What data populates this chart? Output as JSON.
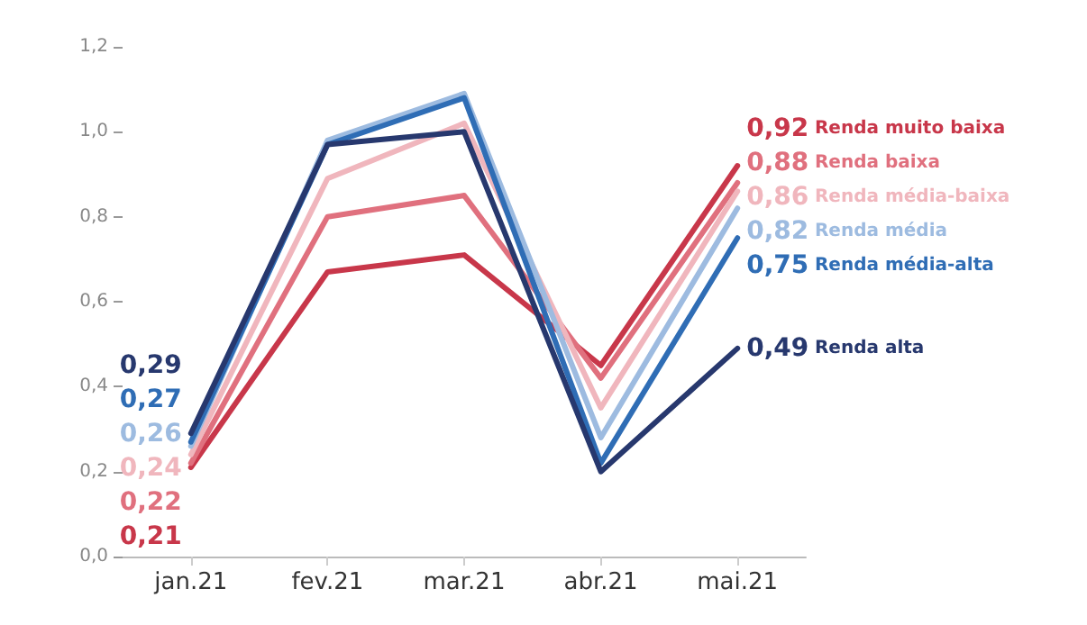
{
  "chart_data": {
    "type": "line",
    "categories": [
      "jan.21",
      "fev.21",
      "mar.21",
      "abr.21",
      "mai.21"
    ],
    "ylim": [
      0,
      1.2
    ],
    "yticks": [
      {
        "value": 0,
        "label": "0,0"
      },
      {
        "value": 0.2,
        "label": "0,2"
      },
      {
        "value": 0.4,
        "label": "0,4"
      },
      {
        "value": 0.6,
        "label": "0,6"
      },
      {
        "value": 0.8,
        "label": "0,8"
      },
      {
        "value": 1.0,
        "label": "1,0"
      },
      {
        "value": 1.2,
        "label": "1,2"
      }
    ],
    "grid": false,
    "legend": false,
    "marker": "none",
    "line_style": "solid",
    "series": [
      {
        "name": "Renda muito baixa",
        "color": "#c8374a",
        "values": [
          0.21,
          0.67,
          0.71,
          0.45,
          0.92
        ],
        "value_labels": [
          "0,21",
          null,
          null,
          null,
          "0,92"
        ]
      },
      {
        "name": "Renda baixa",
        "color": "#e0707e",
        "values": [
          0.22,
          0.8,
          0.85,
          0.42,
          0.88
        ],
        "value_labels": [
          "0,22",
          null,
          null,
          null,
          "0,88"
        ]
      },
      {
        "name": "Renda média-baixa",
        "color": "#f0b6bd",
        "values": [
          0.24,
          0.89,
          1.02,
          0.35,
          0.86
        ],
        "value_labels": [
          "0,24",
          null,
          null,
          null,
          "0,86"
        ]
      },
      {
        "name": "Renda média",
        "color": "#9dbbe0",
        "values": [
          0.26,
          0.98,
          1.09,
          0.28,
          0.82
        ],
        "value_labels": [
          "0,26",
          null,
          null,
          null,
          "0,82"
        ]
      },
      {
        "name": "Renda média-alta",
        "color": "#2f6db5",
        "values": [
          0.27,
          0.97,
          1.08,
          0.22,
          0.75
        ],
        "value_labels": [
          "0,27",
          null,
          null,
          null,
          "0,75"
        ]
      },
      {
        "name": "Renda alta",
        "color": "#27386e",
        "values": [
          0.29,
          0.97,
          1.0,
          0.2,
          0.49
        ],
        "value_labels": [
          "0,29",
          null,
          null,
          null,
          "0,49"
        ]
      }
    ]
  }
}
